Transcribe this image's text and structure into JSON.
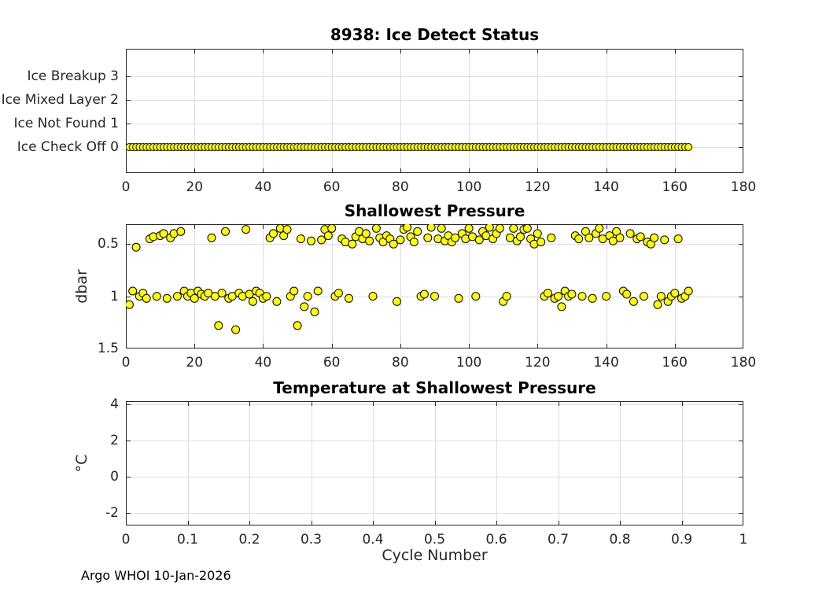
{
  "figure": {
    "footer": "Argo WHOI 10-Jan-2026",
    "background": "#ffffff",
    "marker_fill_color": "#ffff00",
    "marker_edge_color": "#000000",
    "grid_color": "#dcdcdc",
    "axis_color": "#262626"
  },
  "chart_data": [
    {
      "type": "scatter",
      "title": "8938: Ice Detect Status",
      "xlabel": "",
      "ylabel": "",
      "xlim": [
        0,
        180
      ],
      "ylim": [
        -1.1,
        4.16
      ],
      "grid": true,
      "legend": false,
      "xticks": [
        0,
        20,
        40,
        60,
        80,
        100,
        120,
        140,
        160,
        180
      ],
      "xtick_labels": [
        "0",
        "20",
        "40",
        "60",
        "80",
        "100",
        "120",
        "140",
        "160",
        "180"
      ],
      "yticks": [
        0,
        1,
        2,
        3
      ],
      "ytick_labels": [
        "Ice Check Off 0",
        "Ice Not Found 1",
        "Ice Mixed Layer 2",
        "Ice Breakup 3"
      ],
      "marker": {
        "shape": "circle",
        "radius": 4.5,
        "fill": "#ffff00",
        "edge": "#000000"
      },
      "series": [
        {
          "name": "ice-detect-status",
          "x_start": 1,
          "x_end": 164,
          "y_constant": 0
        }
      ]
    },
    {
      "type": "scatter",
      "title": "Shallowest Pressure",
      "xlabel": "",
      "ylabel": "dbar",
      "xlim": [
        0,
        180
      ],
      "ylim": [
        0.31,
        1.5
      ],
      "y_reversed": true,
      "grid": true,
      "legend": false,
      "xticks": [
        0,
        20,
        40,
        60,
        80,
        100,
        120,
        140,
        160,
        180
      ],
      "xtick_labels": [
        "0",
        "20",
        "40",
        "60",
        "80",
        "100",
        "120",
        "140",
        "160",
        "180"
      ],
      "yticks": [
        0.5,
        1,
        1.5
      ],
      "ytick_labels": [
        "0.5",
        "1",
        "1.5"
      ],
      "marker": {
        "shape": "circle",
        "radius": 5,
        "fill": "#ffff00",
        "edge": "#000000"
      },
      "series": [
        {
          "name": "shallowest-pressure-dbar",
          "points": [
            [
              1,
              1.08
            ],
            [
              2,
              0.95
            ],
            [
              3,
              0.53
            ],
            [
              4,
              1.0
            ],
            [
              5,
              0.97
            ],
            [
              6,
              1.02
            ],
            [
              7,
              0.45
            ],
            [
              8,
              0.43
            ],
            [
              9,
              1.0
            ],
            [
              10,
              0.42
            ],
            [
              11,
              0.4
            ],
            [
              12,
              1.02
            ],
            [
              13,
              0.44
            ],
            [
              14,
              0.4
            ],
            [
              15,
              1.0
            ],
            [
              16,
              0.38
            ],
            [
              17,
              0.95
            ],
            [
              18,
              1.0
            ],
            [
              19,
              0.97
            ],
            [
              20,
              1.02
            ],
            [
              21,
              0.95
            ],
            [
              22,
              0.98
            ],
            [
              23,
              1.0
            ],
            [
              24,
              0.97
            ],
            [
              25,
              0.44
            ],
            [
              26,
              1.0
            ],
            [
              27,
              1.28
            ],
            [
              28,
              0.97
            ],
            [
              29,
              0.38
            ],
            [
              30,
              1.02
            ],
            [
              31,
              1.0
            ],
            [
              32,
              1.32
            ],
            [
              33,
              0.97
            ],
            [
              34,
              1.0
            ],
            [
              35,
              0.36
            ],
            [
              36,
              0.98
            ],
            [
              37,
              1.05
            ],
            [
              38,
              0.95
            ],
            [
              39,
              0.97
            ],
            [
              40,
              1.02
            ],
            [
              41,
              1.0
            ],
            [
              42,
              0.44
            ],
            [
              43,
              0.4
            ],
            [
              44,
              1.05
            ],
            [
              45,
              0.35
            ],
            [
              46,
              0.42
            ],
            [
              47,
              0.36
            ],
            [
              48,
              1.0
            ],
            [
              49,
              0.95
            ],
            [
              50,
              1.28
            ],
            [
              51,
              0.45
            ],
            [
              52,
              1.1
            ],
            [
              53,
              1.0
            ],
            [
              54,
              0.47
            ],
            [
              55,
              1.15
            ],
            [
              56,
              0.95
            ],
            [
              57,
              0.46
            ],
            [
              58,
              0.36
            ],
            [
              59,
              0.42
            ],
            [
              60,
              0.35
            ],
            [
              61,
              1.0
            ],
            [
              62,
              0.97
            ],
            [
              63,
              0.45
            ],
            [
              64,
              0.48
            ],
            [
              65,
              1.02
            ],
            [
              66,
              0.5
            ],
            [
              67,
              0.43
            ],
            [
              68,
              0.38
            ],
            [
              69,
              0.45
            ],
            [
              70,
              0.4
            ],
            [
              71,
              0.47
            ],
            [
              72,
              1.0
            ],
            [
              73,
              0.35
            ],
            [
              74,
              0.44
            ],
            [
              75,
              0.48
            ],
            [
              76,
              0.42
            ],
            [
              77,
              0.45
            ],
            [
              78,
              0.5
            ],
            [
              79,
              1.05
            ],
            [
              80,
              0.46
            ],
            [
              81,
              0.36
            ],
            [
              82,
              0.34
            ],
            [
              83,
              0.43
            ],
            [
              84,
              0.48
            ],
            [
              85,
              0.38
            ],
            [
              86,
              1.0
            ],
            [
              87,
              0.98
            ],
            [
              88,
              0.44
            ],
            [
              89,
              0.34
            ],
            [
              90,
              1.0
            ],
            [
              91,
              0.45
            ],
            [
              92,
              0.35
            ],
            [
              93,
              0.47
            ],
            [
              94,
              0.42
            ],
            [
              95,
              0.48
            ],
            [
              96,
              0.44
            ],
            [
              97,
              1.02
            ],
            [
              98,
              0.4
            ],
            [
              99,
              0.45
            ],
            [
              100,
              0.35
            ],
            [
              101,
              0.43
            ],
            [
              102,
              1.0
            ],
            [
              103,
              0.46
            ],
            [
              104,
              0.38
            ],
            [
              105,
              0.42
            ],
            [
              106,
              0.34
            ],
            [
              107,
              0.45
            ],
            [
              108,
              0.4
            ],
            [
              109,
              0.35
            ],
            [
              110,
              1.05
            ],
            [
              111,
              1.0
            ],
            [
              112,
              0.44
            ],
            [
              113,
              0.35
            ],
            [
              114,
              0.47
            ],
            [
              115,
              0.43
            ],
            [
              116,
              0.36
            ],
            [
              117,
              0.35
            ],
            [
              118,
              0.45
            ],
            [
              119,
              0.5
            ],
            [
              120,
              0.4
            ],
            [
              121,
              0.48
            ],
            [
              122,
              1.0
            ],
            [
              123,
              0.97
            ],
            [
              124,
              0.44
            ],
            [
              125,
              1.02
            ],
            [
              126,
              1.0
            ],
            [
              127,
              1.1
            ],
            [
              128,
              0.95
            ],
            [
              129,
              1.0
            ],
            [
              130,
              0.98
            ],
            [
              131,
              0.42
            ],
            [
              132,
              0.45
            ],
            [
              133,
              1.0
            ],
            [
              134,
              0.38
            ],
            [
              135,
              0.44
            ],
            [
              136,
              1.02
            ],
            [
              137,
              0.4
            ],
            [
              138,
              0.35
            ],
            [
              139,
              0.45
            ],
            [
              140,
              1.0
            ],
            [
              141,
              0.42
            ],
            [
              142,
              0.47
            ],
            [
              143,
              0.38
            ],
            [
              144,
              0.44
            ],
            [
              145,
              0.95
            ],
            [
              146,
              0.98
            ],
            [
              147,
              0.4
            ],
            [
              148,
              1.05
            ],
            [
              149,
              0.45
            ],
            [
              150,
              0.43
            ],
            [
              151,
              1.0
            ],
            [
              152,
              0.48
            ],
            [
              153,
              0.5
            ],
            [
              154,
              0.44
            ],
            [
              155,
              1.08
            ],
            [
              156,
              1.0
            ],
            [
              157,
              0.46
            ],
            [
              158,
              1.05
            ],
            [
              159,
              1.0
            ],
            [
              160,
              0.97
            ],
            [
              161,
              0.45
            ],
            [
              162,
              1.02
            ],
            [
              163,
              1.0
            ],
            [
              164,
              0.95
            ]
          ]
        }
      ]
    },
    {
      "type": "scatter",
      "title": "Temperature at Shallowest Pressure",
      "xlabel": "Cycle Number",
      "ylabel": "°C",
      "xlim": [
        0,
        1
      ],
      "ylim": [
        -2.69,
        4.16
      ],
      "grid": true,
      "legend": false,
      "xticks": [
        0,
        0.1,
        0.2,
        0.3,
        0.4,
        0.5,
        0.6,
        0.7,
        0.8,
        0.9,
        1
      ],
      "xtick_labels": [
        "0",
        "0.1",
        "0.2",
        "0.3",
        "0.4",
        "0.5",
        "0.6",
        "0.7",
        "0.8",
        "0.9",
        "1"
      ],
      "yticks": [
        -2,
        0,
        2,
        4
      ],
      "ytick_labels": [
        "-2",
        "0",
        "2",
        "4"
      ],
      "marker": {
        "shape": "circle",
        "radius": 5,
        "fill": "#ffff00",
        "edge": "#000000"
      },
      "series": [
        {
          "name": "temperature-at-shallowest-pressure",
          "points": []
        }
      ]
    }
  ]
}
